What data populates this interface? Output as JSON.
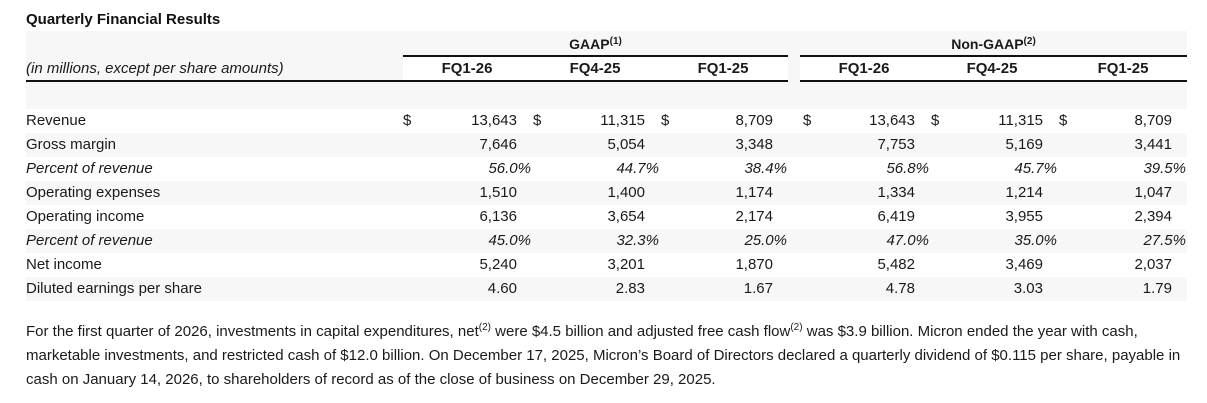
{
  "title": "Quarterly Financial Results",
  "table": {
    "unit_label": "(in millions, except per share amounts)",
    "groups": [
      {
        "label": "GAAP",
        "footnote": "(1)"
      },
      {
        "label": "Non-GAAP",
        "footnote": "(2)"
      }
    ],
    "columns": [
      "FQ1-26",
      "FQ4-25",
      "FQ1-25",
      "FQ1-26",
      "FQ4-25",
      "FQ1-25"
    ],
    "currency_symbol": "$",
    "rows": [
      {
        "label": "Revenue",
        "italic": false,
        "dollar": true,
        "values": [
          "13,643",
          "11,315",
          "8,709",
          "13,643",
          "11,315",
          "8,709"
        ]
      },
      {
        "label": "Gross margin",
        "italic": false,
        "dollar": false,
        "values": [
          "7,646",
          "5,054",
          "3,348",
          "7,753",
          "5,169",
          "3,441"
        ]
      },
      {
        "label": "Percent of revenue",
        "italic": true,
        "dollar": false,
        "values": [
          "56.0%",
          "44.7%",
          "38.4%",
          "56.8%",
          "45.7%",
          "39.5%"
        ]
      },
      {
        "label": "Operating expenses",
        "italic": false,
        "dollar": false,
        "values": [
          "1,510",
          "1,400",
          "1,174",
          "1,334",
          "1,214",
          "1,047"
        ]
      },
      {
        "label": "Operating income",
        "italic": false,
        "dollar": false,
        "values": [
          "6,136",
          "3,654",
          "2,174",
          "6,419",
          "3,955",
          "2,394"
        ]
      },
      {
        "label": "Percent of revenue",
        "italic": true,
        "dollar": false,
        "values": [
          "45.0%",
          "32.3%",
          "25.0%",
          "47.0%",
          "35.0%",
          "27.5%"
        ]
      },
      {
        "label": "Net income",
        "italic": false,
        "dollar": false,
        "values": [
          "5,240",
          "3,201",
          "1,870",
          "5,482",
          "3,469",
          "2,037"
        ]
      },
      {
        "label": "Diluted earnings per share",
        "italic": false,
        "dollar": false,
        "values": [
          "4.60",
          "2.83",
          "1.67",
          "4.78",
          "3.03",
          "1.79"
        ]
      }
    ]
  },
  "paragraph": {
    "part1": "For the first quarter of 2026, investments in capital expenditures, net",
    "sup1": "(2)",
    "part2": " were $4.5 billion and adjusted free cash flow",
    "sup2": "(2)",
    "part3": " was $3.9 billion. Micron ended the year with cash, marketable investments, and restricted cash of $12.0 billion. On December 17, 2025, Micron’s Board of Directors declared a quarterly dividend of $0.115 per share, payable in cash on January 14, 2026, to shareholders of record as of the close of business on December 29, 2025."
  }
}
